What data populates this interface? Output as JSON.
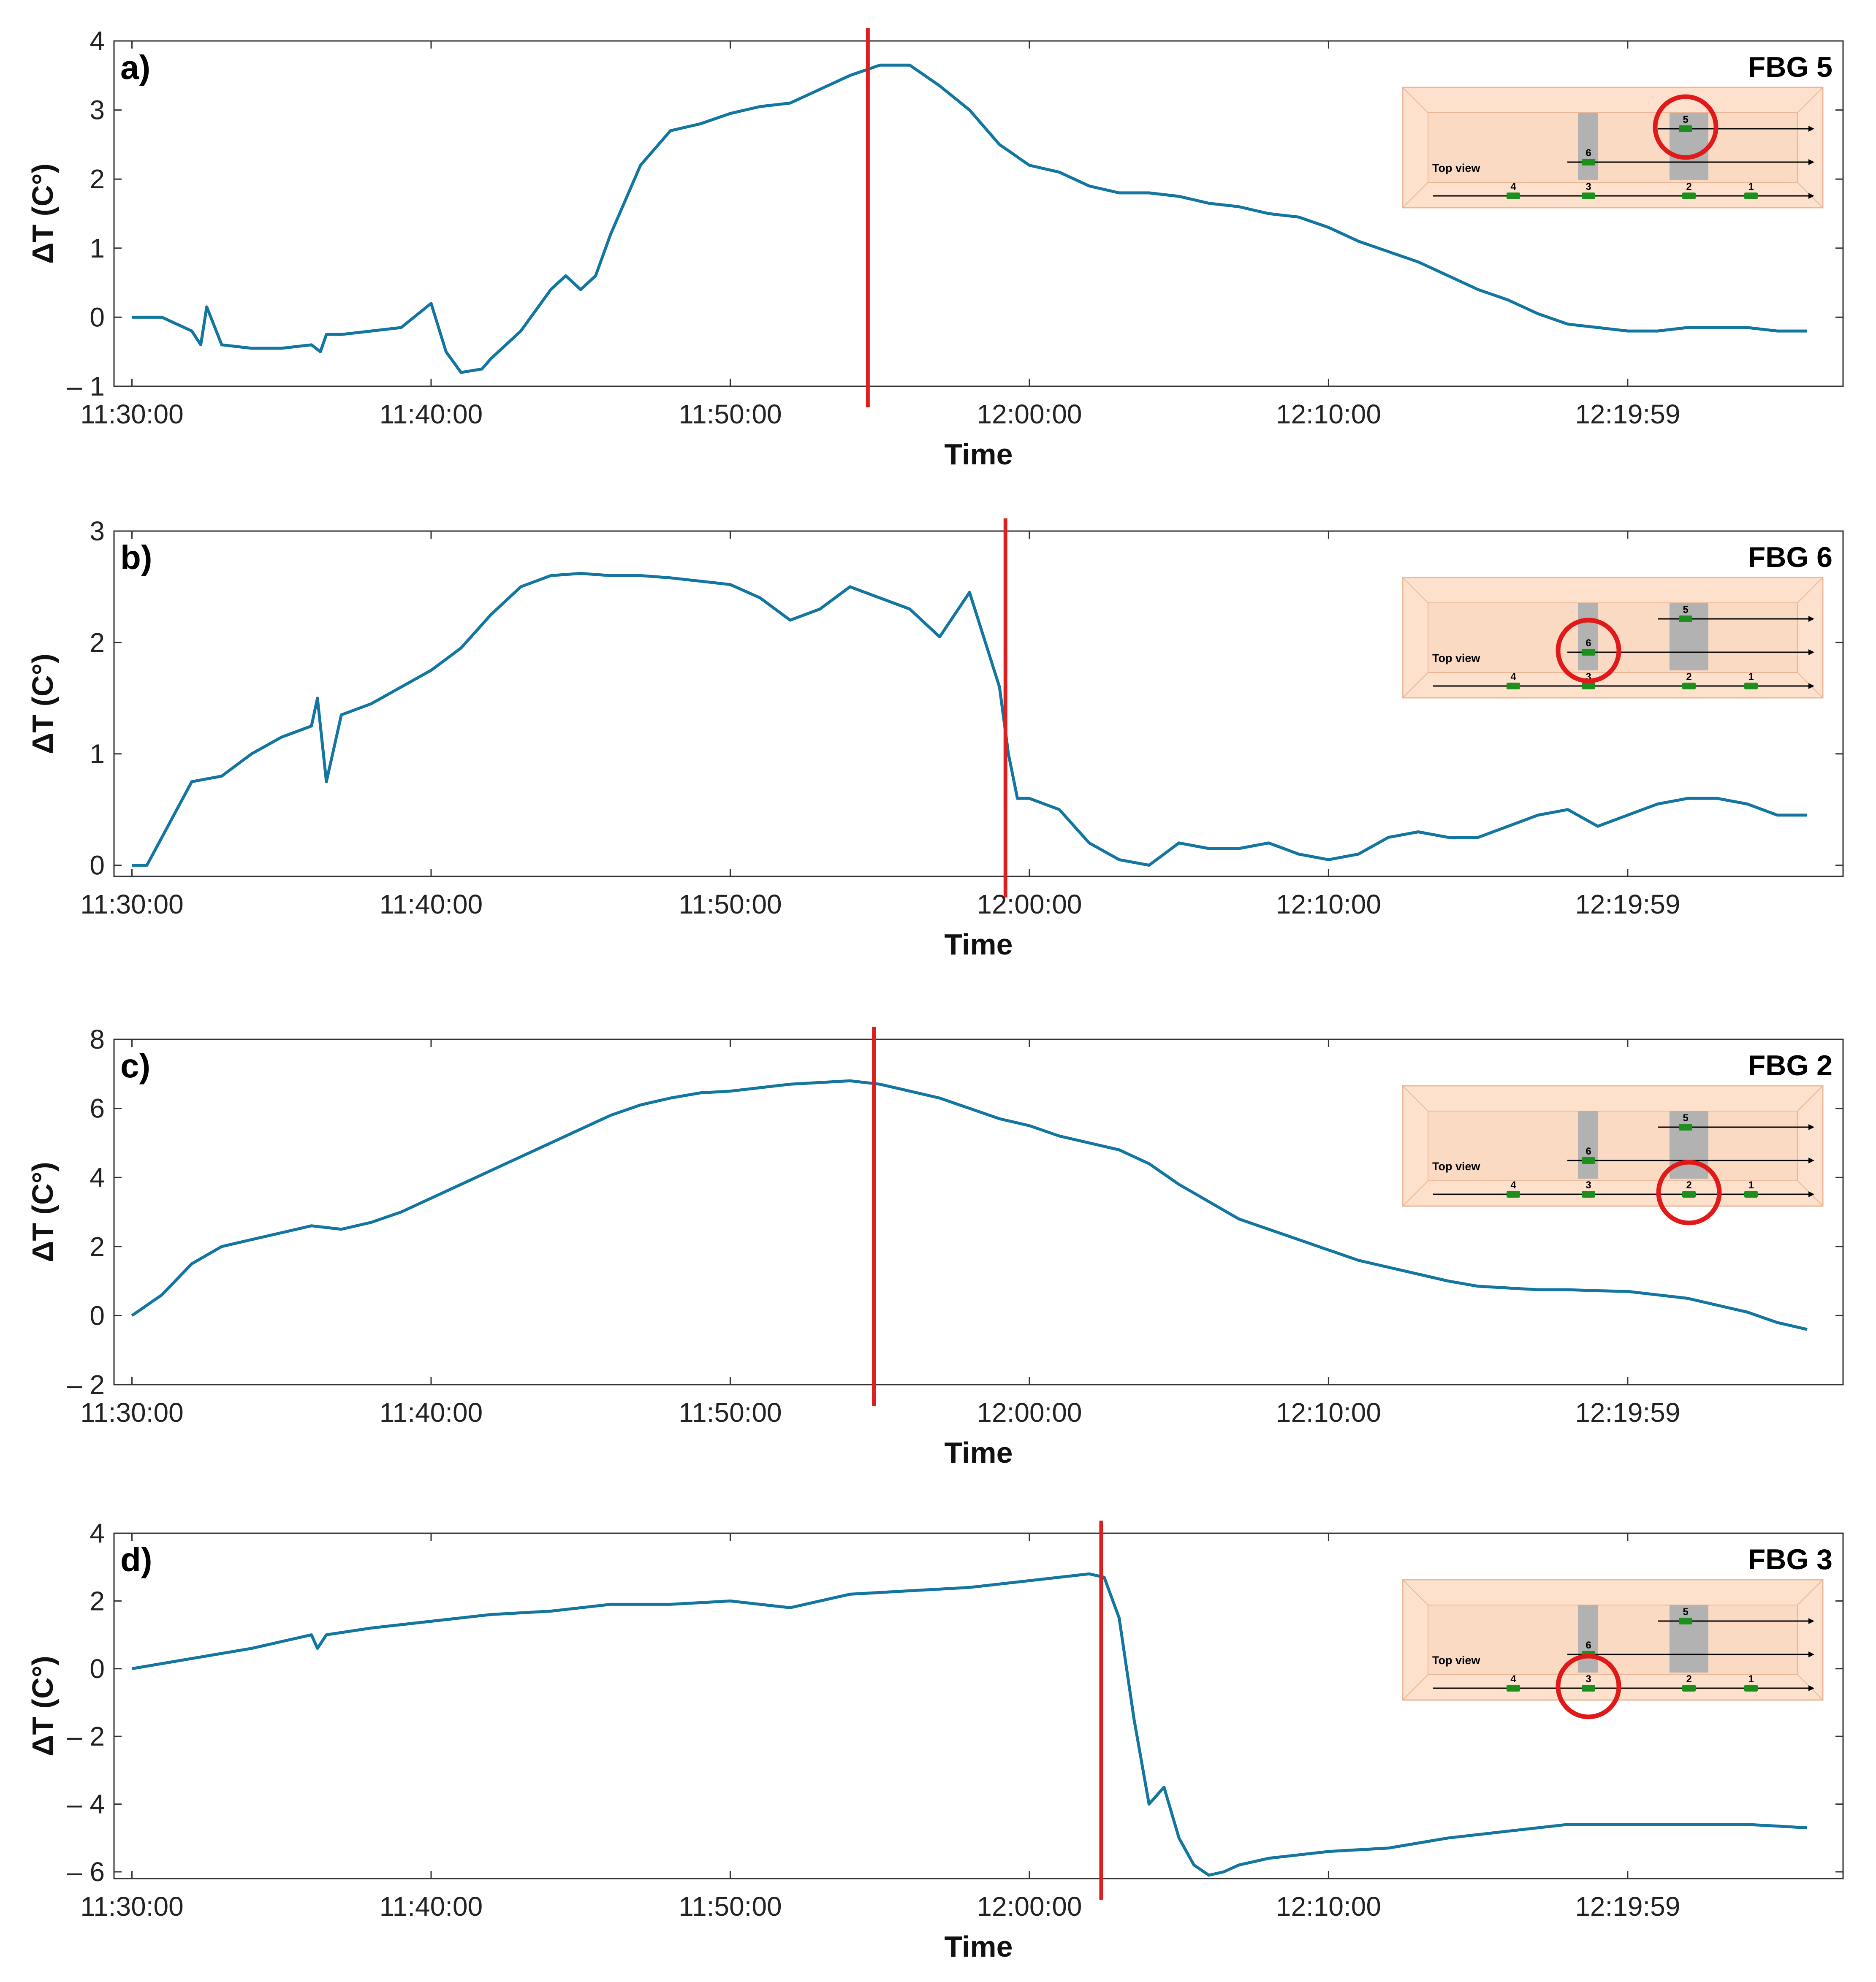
{
  "x_tick_labels": [
    "11:30:00",
    "11:40:00",
    "11:50:00",
    "12:00:00",
    "12:10:00",
    "12:19:59"
  ],
  "x_axis_label": "Time",
  "y_axis_label": "ΔT (C°)",
  "inset": {
    "top_view_label": "Top view",
    "sensor_labels": [
      "1",
      "2",
      "3",
      "4",
      "5",
      "6"
    ]
  },
  "colors": {
    "series": "#1276a0",
    "marker": "#dd1f1f",
    "inset_background": "#fde1cd",
    "sensor": "#1c8f1c"
  },
  "chart_data": [
    {
      "type": "line",
      "panel_label": "a)",
      "title": "FBG 5",
      "xlabel": "Time",
      "ylabel": "ΔT (C°)",
      "y_tick_labels": [
        "– 1",
        "0",
        "1",
        "2",
        "3",
        "4"
      ],
      "ylim": [
        -1,
        4
      ],
      "xlim_minutes": [
        -0.6,
        57.2
      ],
      "vertical_marker_minutes": 24.6,
      "highlighted_sensor": "5",
      "x_minutes": [
        0,
        1,
        2,
        2.3,
        2.5,
        3,
        4,
        5,
        6,
        6.3,
        6.5,
        7,
        8,
        9,
        10,
        10.5,
        11,
        11.7,
        12,
        13,
        14,
        14.5,
        15,
        15.5,
        16,
        17,
        18,
        19,
        20,
        21,
        22,
        23,
        24,
        25,
        26,
        27,
        28,
        29,
        30,
        31,
        32,
        33,
        34,
        35,
        36,
        37,
        38,
        39,
        40,
        41,
        42,
        43,
        44,
        45,
        46,
        47,
        48,
        49,
        50,
        51,
        52,
        53,
        54,
        55,
        56
      ],
      "y": [
        0,
        0,
        -0.2,
        -0.4,
        0.15,
        -0.4,
        -0.45,
        -0.45,
        -0.4,
        -0.5,
        -0.25,
        -0.25,
        -0.2,
        -0.15,
        0.2,
        -0.5,
        -0.8,
        -0.75,
        -0.6,
        -0.2,
        0.4,
        0.6,
        0.4,
        0.6,
        1.2,
        2.2,
        2.7,
        2.8,
        2.95,
        3.05,
        3.1,
        3.3,
        3.5,
        3.65,
        3.65,
        3.35,
        3.0,
        2.5,
        2.2,
        2.1,
        1.9,
        1.8,
        1.8,
        1.75,
        1.65,
        1.6,
        1.5,
        1.45,
        1.3,
        1.1,
        0.95,
        0.8,
        0.6,
        0.4,
        0.25,
        0.05,
        -0.1,
        -0.15,
        -0.2,
        -0.2,
        -0.15,
        -0.15,
        -0.15,
        -0.2,
        -0.2
      ]
    },
    {
      "type": "line",
      "panel_label": "b)",
      "title": "FBG 6",
      "xlabel": "Time",
      "ylabel": "ΔT (C°)",
      "y_tick_labels": [
        "0",
        "1",
        "2",
        "3"
      ],
      "ylim": [
        -0.1,
        3
      ],
      "xlim_minutes": [
        -0.6,
        57.2
      ],
      "vertical_marker_minutes": 29.2,
      "highlighted_sensor": "6",
      "x_minutes": [
        0,
        0.5,
        1,
        2,
        3,
        4,
        5,
        6,
        6.2,
        6.5,
        7,
        8,
        9,
        10,
        11,
        12,
        13,
        14,
        15,
        16,
        17,
        18,
        19,
        20,
        21,
        22,
        23,
        24,
        25,
        26,
        27,
        28,
        29,
        29.3,
        29.6,
        30,
        31,
        32,
        33,
        34,
        35,
        36,
        37,
        38,
        39,
        40,
        41,
        42,
        43,
        44,
        45,
        46,
        47,
        48,
        49,
        50,
        51,
        52,
        53,
        54,
        55,
        56
      ],
      "y": [
        0,
        0,
        0.25,
        0.75,
        0.8,
        1.0,
        1.15,
        1.25,
        1.5,
        0.75,
        1.35,
        1.45,
        1.6,
        1.75,
        1.95,
        2.25,
        2.5,
        2.6,
        2.62,
        2.6,
        2.6,
        2.58,
        2.55,
        2.52,
        2.4,
        2.2,
        2.3,
        2.5,
        2.4,
        2.3,
        2.05,
        2.45,
        1.6,
        1.0,
        0.6,
        0.6,
        0.5,
        0.2,
        0.05,
        0.0,
        0.2,
        0.15,
        0.15,
        0.2,
        0.1,
        0.05,
        0.1,
        0.25,
        0.3,
        0.25,
        0.25,
        0.35,
        0.45,
        0.5,
        0.35,
        0.45,
        0.55,
        0.6,
        0.6,
        0.55,
        0.45,
        0.45
      ]
    },
    {
      "type": "line",
      "panel_label": "c)",
      "title": "FBG 2",
      "xlabel": "Time",
      "ylabel": "ΔT (C°)",
      "y_tick_labels": [
        "– 2",
        "0",
        "2",
        "4",
        "6",
        "8"
      ],
      "ylim": [
        -2,
        8
      ],
      "xlim_minutes": [
        -0.6,
        57.2
      ],
      "vertical_marker_minutes": 24.8,
      "highlighted_sensor": "2",
      "x_minutes": [
        0,
        1,
        2,
        3,
        4,
        5,
        6,
        7,
        8,
        9,
        10,
        11,
        12,
        13,
        14,
        15,
        16,
        17,
        18,
        19,
        20,
        21,
        22,
        23,
        24,
        25,
        26,
        27,
        28,
        29,
        30,
        31,
        32,
        33,
        34,
        35,
        36,
        37,
        38,
        39,
        40,
        41,
        42,
        43,
        44,
        45,
        46,
        47,
        48,
        49,
        50,
        51,
        52,
        53,
        54,
        55,
        56
      ],
      "y": [
        0,
        0.6,
        1.5,
        2.0,
        2.2,
        2.4,
        2.6,
        2.5,
        2.7,
        3.0,
        3.4,
        3.8,
        4.2,
        4.6,
        5.0,
        5.4,
        5.8,
        6.1,
        6.3,
        6.45,
        6.5,
        6.6,
        6.7,
        6.75,
        6.8,
        6.7,
        6.5,
        6.3,
        6.0,
        5.7,
        5.5,
        5.2,
        5.0,
        4.8,
        4.4,
        3.8,
        3.3,
        2.8,
        2.5,
        2.2,
        1.9,
        1.6,
        1.4,
        1.2,
        1.0,
        0.85,
        0.8,
        0.75,
        0.75,
        0.72,
        0.7,
        0.6,
        0.5,
        0.3,
        0.1,
        -0.2,
        -0.4
      ]
    },
    {
      "type": "line",
      "panel_label": "d)",
      "title": "FBG 3",
      "xlabel": "Time",
      "ylabel": "ΔT (C°)",
      "y_tick_labels": [
        "– 6",
        "– 4",
        "– 2",
        "0",
        "2",
        "4"
      ],
      "ylim": [
        -6.2,
        4
      ],
      "xlim_minutes": [
        -0.6,
        57.2
      ],
      "vertical_marker_minutes": 32.4,
      "highlighted_sensor": "3",
      "x_minutes": [
        0,
        2,
        4,
        6,
        6.2,
        6.5,
        8,
        10,
        12,
        14,
        16,
        18,
        20,
        22,
        24,
        26,
        28,
        30,
        32,
        32.5,
        33,
        33.5,
        34,
        34.5,
        35,
        35.5,
        36,
        36.5,
        37,
        38,
        40,
        42,
        44,
        46,
        48,
        50,
        52,
        54,
        56
      ],
      "y": [
        0,
        0.3,
        0.6,
        1.0,
        0.6,
        1.0,
        1.2,
        1.4,
        1.6,
        1.7,
        1.9,
        1.9,
        2.0,
        1.8,
        2.2,
        2.3,
        2.4,
        2.6,
        2.8,
        2.7,
        1.5,
        -1.5,
        -4.0,
        -3.5,
        -5.0,
        -5.8,
        -6.1,
        -6.0,
        -5.8,
        -5.6,
        -5.4,
        -5.3,
        -5.0,
        -4.8,
        -4.6,
        -4.6,
        -4.6,
        -4.6,
        -4.7
      ]
    }
  ]
}
